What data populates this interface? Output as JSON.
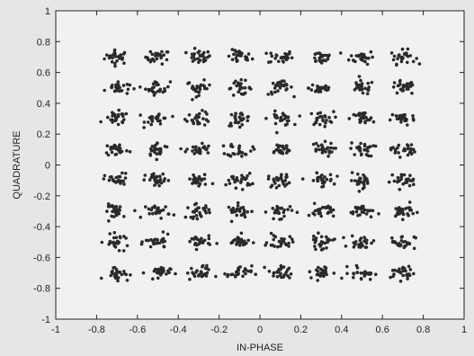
{
  "chart_data": {
    "type": "scatter",
    "title": "",
    "xlabel": "IN-PHASE",
    "ylabel": "QUADRATURE",
    "xlim": [
      -1,
      1
    ],
    "ylim": [
      -1,
      1
    ],
    "xticks": [
      -1,
      -0.8,
      -0.6,
      -0.4,
      -0.2,
      0,
      0.2,
      0.4,
      0.6,
      0.8,
      1
    ],
    "yticks": [
      -1,
      -0.8,
      -0.6,
      -0.4,
      -0.2,
      0,
      0.2,
      0.4,
      0.6,
      0.8,
      1
    ],
    "xtick_labels": [
      "-1",
      "-0.8",
      "-0.6",
      "-0.4",
      "-0.2",
      "0",
      "0.2",
      "0.4",
      "0.6",
      "0.8",
      "1"
    ],
    "ytick_labels": [
      "-1",
      "-0.8",
      "-0.6",
      "-0.4",
      "-0.2",
      "0",
      "0.2",
      "0.4",
      "0.6",
      "0.8",
      "1"
    ],
    "grid": false,
    "legend": "none",
    "constellation": "64-QAM",
    "cluster_centers_i": [
      -0.7,
      -0.5,
      -0.3,
      -0.1,
      0.1,
      0.3,
      0.5,
      0.7
    ],
    "cluster_centers_q": [
      0.7,
      0.5,
      0.3,
      0.1,
      -0.1,
      -0.3,
      -0.5,
      -0.7
    ],
    "noise_spread": 0.03,
    "marker_color": "#2a2a2a",
    "background_color": "#e6e6e4",
    "plot_area_color": "#f1f1ef"
  }
}
